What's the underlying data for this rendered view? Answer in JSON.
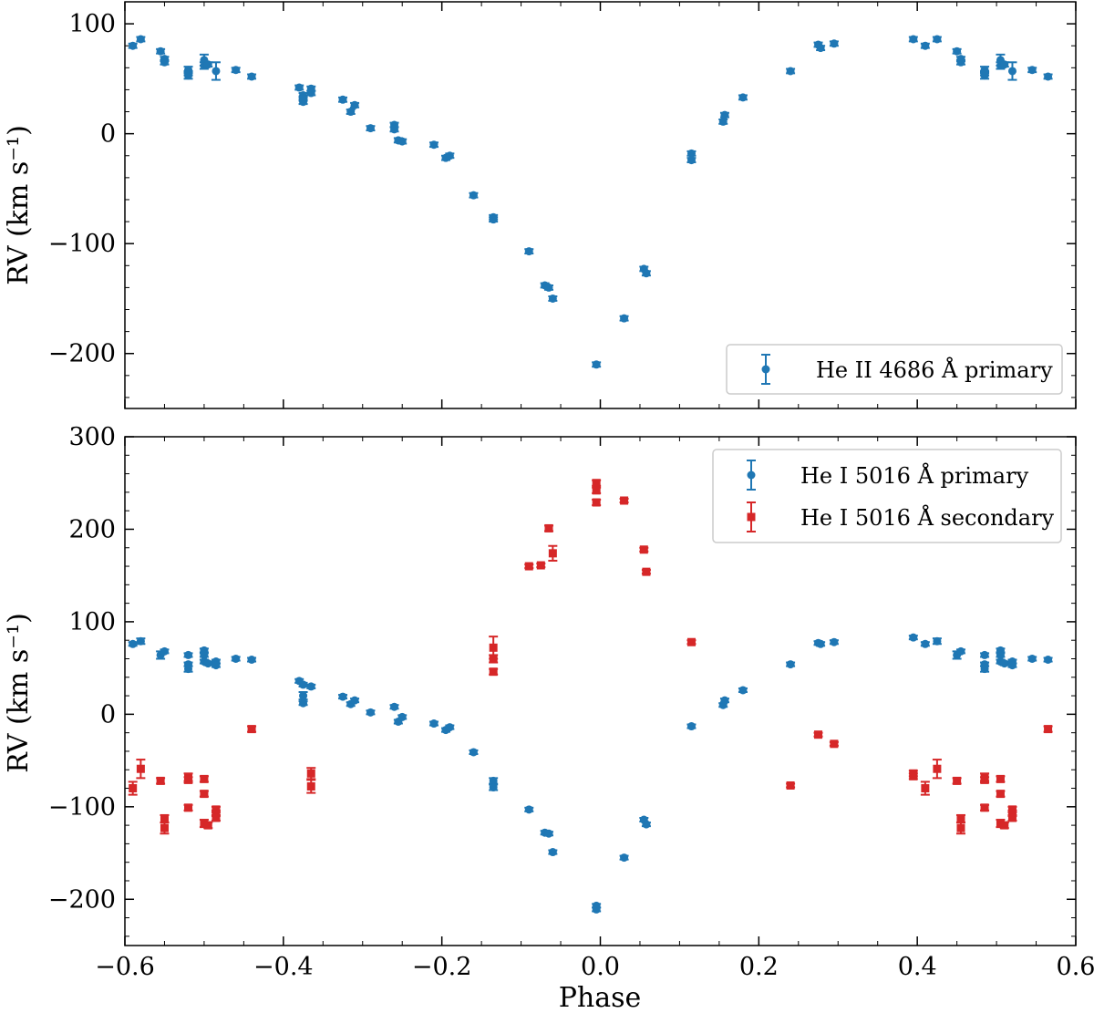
{
  "colors": {
    "primary": "#1f77b4",
    "secondary": "#d62728",
    "axes": "#000000"
  },
  "chart_data": [
    {
      "type": "scatter",
      "panel": "top",
      "xlabel": "",
      "ylabel": "RV (km s⁻¹)",
      "xlim": [
        -0.6,
        0.6
      ],
      "ylim": [
        -250,
        120
      ],
      "xticks": [
        -0.6,
        -0.4,
        -0.2,
        0.0,
        0.2,
        0.4,
        0.6
      ],
      "yticks": [
        -200,
        -100,
        0,
        100
      ],
      "ytick_labels": [
        "−200",
        "−100",
        "0",
        "100"
      ],
      "grid": false,
      "legend_position": "lower-right",
      "series": [
        {
          "name": "He II 4686 Å primary",
          "marker": "circle",
          "color": "#1f77b4",
          "points": [
            [
              -0.59,
              80,
              2
            ],
            [
              -0.58,
              86,
              2
            ],
            [
              -0.555,
              75,
              2
            ],
            [
              -0.55,
              68,
              2
            ],
            [
              -0.55,
              65,
              2
            ],
            [
              -0.52,
              58,
              3
            ],
            [
              -0.52,
              53,
              3
            ],
            [
              -0.52,
              55,
              2
            ],
            [
              -0.5,
              62,
              3
            ],
            [
              -0.5,
              67,
              5
            ],
            [
              -0.495,
              63,
              2
            ],
            [
              -0.485,
              57,
              8
            ],
            [
              -0.46,
              58,
              2
            ],
            [
              -0.44,
              52,
              2
            ],
            [
              -0.38,
              42,
              2
            ],
            [
              -0.375,
              35,
              2
            ],
            [
              -0.375,
              32,
              2
            ],
            [
              -0.375,
              29,
              2
            ],
            [
              -0.365,
              41,
              2
            ],
            [
              -0.365,
              37,
              2
            ],
            [
              -0.325,
              31,
              2
            ],
            [
              -0.315,
              20,
              2
            ],
            [
              -0.31,
              26,
              2
            ],
            [
              -0.29,
              5,
              2
            ],
            [
              -0.26,
              8,
              2
            ],
            [
              -0.26,
              4,
              2
            ],
            [
              -0.255,
              -6,
              2
            ],
            [
              -0.25,
              -7,
              2
            ],
            [
              -0.21,
              -10,
              2
            ],
            [
              -0.195,
              -22,
              2
            ],
            [
              -0.19,
              -20,
              2
            ],
            [
              -0.16,
              -56,
              2
            ],
            [
              -0.135,
              -76,
              2
            ],
            [
              -0.135,
              -78,
              2
            ],
            [
              -0.09,
              -107,
              2
            ],
            [
              -0.07,
              -138,
              2
            ],
            [
              -0.065,
              -140,
              2
            ],
            [
              -0.06,
              -150,
              2
            ],
            [
              -0.005,
              -210,
              2
            ],
            [
              0.03,
              -168,
              2
            ],
            [
              0.055,
              -123,
              2
            ],
            [
              0.058,
              -127,
              2
            ],
            [
              0.115,
              -18,
              2
            ],
            [
              0.115,
              -24,
              2
            ],
            [
              0.155,
              11,
              2
            ],
            [
              0.157,
              17,
              2
            ],
            [
              0.18,
              33,
              2
            ],
            [
              0.24,
              57,
              2
            ],
            [
              0.275,
              81,
              2
            ],
            [
              0.278,
              78,
              2
            ],
            [
              0.295,
              82,
              2
            ],
            [
              0.395,
              86,
              2
            ],
            [
              0.41,
              80,
              2
            ],
            [
              0.425,
              86,
              2
            ],
            [
              0.45,
              75,
              2
            ],
            [
              0.455,
              68,
              2
            ],
            [
              0.455,
              65,
              2
            ],
            [
              0.485,
              58,
              3
            ],
            [
              0.485,
              53,
              3
            ],
            [
              0.485,
              55,
              2
            ],
            [
              0.505,
              62,
              3
            ],
            [
              0.505,
              67,
              5
            ],
            [
              0.51,
              63,
              2
            ],
            [
              0.52,
              57,
              8
            ],
            [
              0.545,
              58,
              2
            ],
            [
              0.565,
              52,
              2
            ]
          ]
        }
      ]
    },
    {
      "type": "scatter",
      "panel": "bottom",
      "xlabel": "Phase",
      "ylabel": "RV (km s⁻¹)",
      "xlim": [
        -0.6,
        0.6
      ],
      "ylim": [
        -250,
        300
      ],
      "xticks": [
        -0.6,
        -0.4,
        -0.2,
        0.0,
        0.2,
        0.4,
        0.6
      ],
      "xtick_labels": [
        "−0.6",
        "−0.4",
        "−0.2",
        "0.0",
        "0.2",
        "0.4",
        "0.6"
      ],
      "yticks": [
        -200,
        -100,
        0,
        100,
        200,
        300
      ],
      "ytick_labels": [
        "−200",
        "−100",
        "0",
        "100",
        "200",
        "300"
      ],
      "grid": false,
      "legend_position": "upper-right",
      "series": [
        {
          "name": "He I 5016 Å primary",
          "marker": "circle",
          "color": "#1f77b4",
          "points": [
            [
              -0.59,
              76,
              2
            ],
            [
              -0.58,
              79,
              3
            ],
            [
              -0.555,
              64,
              4
            ],
            [
              -0.55,
              68,
              2
            ],
            [
              -0.52,
              64,
              2
            ],
            [
              -0.52,
              54,
              2
            ],
            [
              -0.52,
              49,
              3
            ],
            [
              -0.5,
              69,
              2
            ],
            [
              -0.5,
              64,
              2
            ],
            [
              -0.5,
              57,
              2
            ],
            [
              -0.495,
              55,
              2
            ],
            [
              -0.485,
              57,
              2
            ],
            [
              -0.485,
              53,
              2
            ],
            [
              -0.46,
              60,
              2
            ],
            [
              -0.44,
              59,
              2
            ],
            [
              -0.38,
              36,
              2
            ],
            [
              -0.375,
              32,
              2
            ],
            [
              -0.375,
              20,
              4
            ],
            [
              -0.375,
              12,
              2
            ],
            [
              -0.365,
              30,
              2
            ],
            [
              -0.325,
              19,
              2
            ],
            [
              -0.315,
              11,
              2
            ],
            [
              -0.31,
              15,
              2
            ],
            [
              -0.29,
              2,
              2
            ],
            [
              -0.26,
              8,
              2
            ],
            [
              -0.255,
              -8,
              2
            ],
            [
              -0.25,
              -3,
              2
            ],
            [
              -0.21,
              -10,
              2
            ],
            [
              -0.195,
              -17,
              2
            ],
            [
              -0.19,
              -14,
              2
            ],
            [
              -0.16,
              -41,
              2
            ],
            [
              -0.135,
              -72,
              3
            ],
            [
              -0.135,
              -79,
              3
            ],
            [
              -0.09,
              -103,
              2
            ],
            [
              -0.07,
              -128,
              2
            ],
            [
              -0.065,
              -129,
              2
            ],
            [
              -0.06,
              -149,
              2
            ],
            [
              -0.005,
              -207,
              2
            ],
            [
              -0.005,
              -211,
              2
            ],
            [
              0.03,
              -155,
              2
            ],
            [
              0.055,
              -114,
              2
            ],
            [
              0.058,
              -119,
              2
            ],
            [
              0.115,
              -13,
              2
            ],
            [
              0.155,
              10,
              2
            ],
            [
              0.157,
              15,
              2
            ],
            [
              0.18,
              26,
              2
            ],
            [
              0.24,
              54,
              2
            ],
            [
              0.275,
              77,
              2
            ],
            [
              0.278,
              76,
              2
            ],
            [
              0.295,
              78,
              2
            ],
            [
              0.395,
              83,
              2
            ],
            [
              0.41,
              76,
              2
            ],
            [
              0.425,
              79,
              3
            ],
            [
              0.45,
              64,
              4
            ],
            [
              0.455,
              68,
              2
            ],
            [
              0.485,
              64,
              2
            ],
            [
              0.485,
              54,
              2
            ],
            [
              0.485,
              49,
              3
            ],
            [
              0.505,
              69,
              2
            ],
            [
              0.505,
              64,
              2
            ],
            [
              0.505,
              57,
              2
            ],
            [
              0.51,
              55,
              2
            ],
            [
              0.52,
              57,
              2
            ],
            [
              0.52,
              53,
              2
            ],
            [
              0.545,
              60,
              2
            ],
            [
              0.565,
              59,
              2
            ]
          ]
        },
        {
          "name": "He I 5016 Å secondary",
          "marker": "square",
          "color": "#d62728",
          "points": [
            [
              -0.59,
              -80,
              7
            ],
            [
              -0.58,
              -59,
              10
            ],
            [
              -0.555,
              -72,
              3
            ],
            [
              -0.55,
              -113,
              4
            ],
            [
              -0.55,
              -123,
              6
            ],
            [
              -0.52,
              -68,
              4
            ],
            [
              -0.52,
              -71,
              3
            ],
            [
              -0.52,
              -101,
              3
            ],
            [
              -0.5,
              -70,
              3
            ],
            [
              -0.5,
              -86,
              3
            ],
            [
              -0.5,
              -118,
              4
            ],
            [
              -0.495,
              -120,
              3
            ],
            [
              -0.485,
              -103,
              3
            ],
            [
              -0.485,
              -107,
              3
            ],
            [
              -0.485,
              -112,
              3
            ],
            [
              -0.44,
              -16,
              3
            ],
            [
              -0.365,
              -64,
              6
            ],
            [
              -0.365,
              -78,
              7
            ],
            [
              -0.135,
              72,
              12
            ],
            [
              -0.135,
              60,
              4
            ],
            [
              -0.135,
              46,
              3
            ],
            [
              -0.09,
              160,
              2
            ],
            [
              -0.075,
              161,
              2
            ],
            [
              -0.065,
              201,
              3
            ],
            [
              -0.06,
              174,
              8
            ],
            [
              -0.005,
              250,
              3
            ],
            [
              -0.005,
              242,
              3
            ],
            [
              -0.005,
              229,
              3
            ],
            [
              0.03,
              231,
              2
            ],
            [
              0.055,
              178,
              2
            ],
            [
              0.058,
              154,
              2
            ],
            [
              0.115,
              78,
              2
            ],
            [
              0.24,
              -77,
              2
            ],
            [
              0.275,
              -22,
              2
            ],
            [
              0.295,
              -32,
              2
            ],
            [
              0.395,
              -64,
              3
            ],
            [
              0.395,
              -67,
              3
            ],
            [
              0.41,
              -80,
              7
            ],
            [
              0.425,
              -59,
              10
            ],
            [
              0.45,
              -72,
              3
            ],
            [
              0.455,
              -113,
              4
            ],
            [
              0.455,
              -123,
              6
            ],
            [
              0.485,
              -68,
              4
            ],
            [
              0.485,
              -71,
              3
            ],
            [
              0.485,
              -101,
              3
            ],
            [
              0.505,
              -70,
              3
            ],
            [
              0.505,
              -86,
              3
            ],
            [
              0.505,
              -118,
              4
            ],
            [
              0.51,
              -120,
              3
            ],
            [
              0.52,
              -103,
              3
            ],
            [
              0.52,
              -107,
              3
            ],
            [
              0.52,
              -112,
              3
            ],
            [
              0.565,
              -16,
              3
            ]
          ]
        }
      ]
    }
  ],
  "legends": {
    "top": [
      "He II 4686 Å primary"
    ],
    "bottom": [
      "He I 5016 Å primary",
      "He I 5016 Å secondary"
    ]
  },
  "axis_titles": {
    "top_y": "RV (km s⁻¹)",
    "bottom_y": "RV (km s⁻¹)",
    "bottom_x": "Phase"
  }
}
